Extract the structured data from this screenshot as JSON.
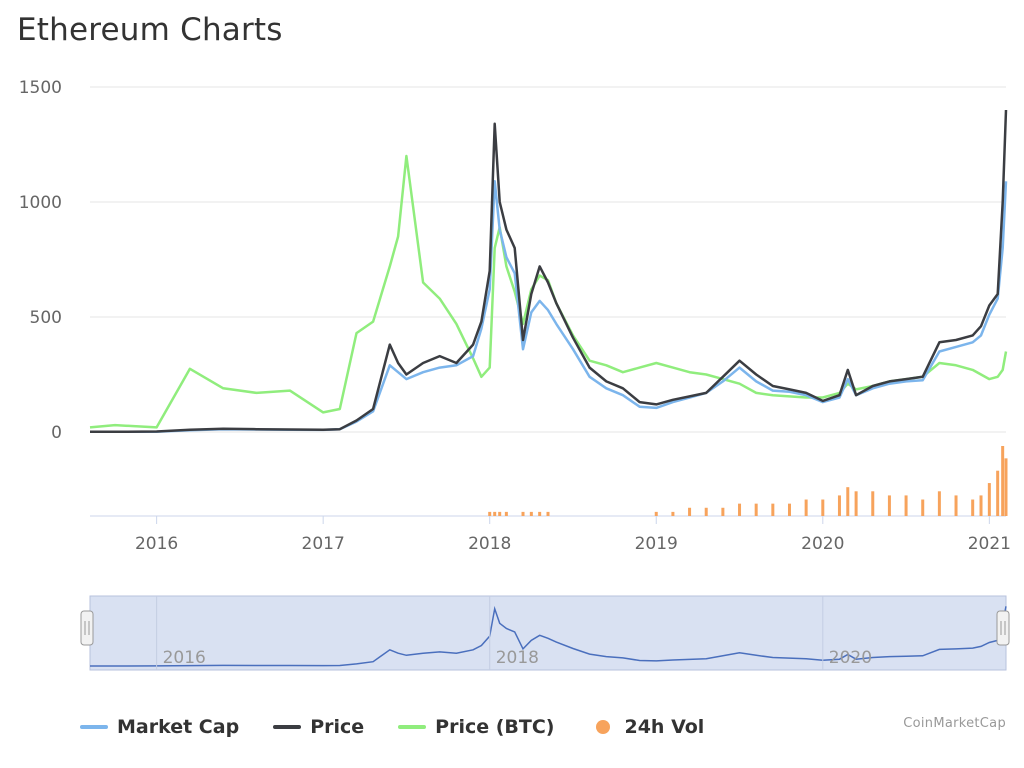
{
  "page": {
    "title": "Ethereum Charts",
    "credit": "CoinMarketCap"
  },
  "colors": {
    "market_cap": "#7cb5ec",
    "price": "#3b3d42",
    "price_btc": "#90ed7d",
    "volume": "#f7a35c",
    "navigator_fill": "#d9e1f2",
    "grid": "#e6e6e6"
  },
  "legend": [
    {
      "label": "Market Cap",
      "marker": "line",
      "color": "#7cb5ec"
    },
    {
      "label": "Price",
      "marker": "line",
      "color": "#3b3d42"
    },
    {
      "label": "Price (BTC)",
      "marker": "line",
      "color": "#90ed7d"
    },
    {
      "label": "24h Vol",
      "marker": "circle",
      "color": "#f7a35c"
    }
  ],
  "navigator": {
    "labels": [
      "2016",
      "2018",
      "2020"
    ]
  },
  "chart_data": {
    "type": "line",
    "title": "Ethereum Charts",
    "xlim": [
      2015.6,
      2021.1
    ],
    "ylim": [
      0,
      1500
    ],
    "yticks": [
      0,
      500,
      1000,
      1500
    ],
    "xticks": [
      "2016",
      "2017",
      "2018",
      "2019",
      "2020",
      "2021"
    ],
    "grid": true,
    "legend_position": "bottom-left",
    "x": [
      2015.6,
      2015.75,
      2016.0,
      2016.2,
      2016.4,
      2016.6,
      2016.8,
      2017.0,
      2017.1,
      2017.2,
      2017.3,
      2017.4,
      2017.45,
      2017.5,
      2017.6,
      2017.7,
      2017.8,
      2017.9,
      2017.95,
      2018.0,
      2018.03,
      2018.06,
      2018.1,
      2018.15,
      2018.2,
      2018.25,
      2018.3,
      2018.35,
      2018.4,
      2018.5,
      2018.6,
      2018.7,
      2018.8,
      2018.9,
      2019.0,
      2019.1,
      2019.2,
      2019.3,
      2019.4,
      2019.5,
      2019.6,
      2019.7,
      2019.8,
      2019.9,
      2020.0,
      2020.1,
      2020.15,
      2020.2,
      2020.3,
      2020.4,
      2020.5,
      2020.6,
      2020.7,
      2020.8,
      2020.9,
      2020.95,
      2021.0,
      2021.05,
      2021.08,
      2021.1
    ],
    "series": [
      {
        "name": "Market Cap",
        "color": "#7cb5ec",
        "values": [
          1,
          1,
          1,
          8,
          12,
          11,
          10,
          9,
          12,
          45,
          90,
          290,
          260,
          230,
          260,
          280,
          290,
          330,
          450,
          620,
          1090,
          880,
          760,
          690,
          360,
          520,
          570,
          530,
          470,
          360,
          240,
          190,
          160,
          110,
          105,
          130,
          150,
          170,
          220,
          280,
          220,
          180,
          175,
          160,
          130,
          150,
          230,
          160,
          190,
          210,
          220,
          225,
          350,
          370,
          390,
          420,
          510,
          580,
          800,
          1090
        ]
      },
      {
        "name": "Price",
        "color": "#3b3d42",
        "values": [
          1,
          1,
          2,
          10,
          14,
          12,
          11,
          10,
          12,
          50,
          100,
          380,
          300,
          250,
          300,
          330,
          300,
          380,
          480,
          700,
          1340,
          1000,
          880,
          800,
          400,
          600,
          720,
          650,
          560,
          410,
          280,
          220,
          190,
          130,
          120,
          140,
          155,
          170,
          240,
          310,
          250,
          200,
          185,
          170,
          135,
          160,
          270,
          160,
          200,
          220,
          230,
          240,
          390,
          400,
          420,
          460,
          550,
          600,
          1000,
          1400
        ]
      },
      {
        "name": "Price (BTC)",
        "color": "#90ed7d",
        "values": [
          20,
          30,
          20,
          275,
          190,
          170,
          180,
          85,
          100,
          430,
          480,
          720,
          850,
          1200,
          650,
          580,
          470,
          320,
          240,
          280,
          800,
          890,
          720,
          610,
          470,
          620,
          680,
          660,
          560,
          420,
          310,
          290,
          260,
          280,
          300,
          280,
          260,
          250,
          230,
          210,
          170,
          160,
          155,
          150,
          150,
          170,
          210,
          185,
          200,
          220,
          230,
          240,
          300,
          290,
          270,
          250,
          230,
          240,
          270,
          350
        ]
      },
      {
        "name": "24h Vol",
        "color": "#f7a35c",
        "type": "bar",
        "values": [
          0,
          0,
          0,
          0,
          0,
          0,
          0,
          0,
          0,
          0,
          0,
          0,
          0,
          0,
          0,
          0,
          0,
          0,
          0,
          1,
          1,
          1,
          1,
          0,
          1,
          1,
          1,
          1,
          0,
          0,
          0,
          0,
          0,
          0,
          1,
          1,
          2,
          2,
          2,
          3,
          3,
          3,
          3,
          4,
          4,
          5,
          7,
          6,
          6,
          5,
          5,
          4,
          6,
          5,
          4,
          5,
          8,
          11,
          17,
          14
        ]
      }
    ]
  }
}
